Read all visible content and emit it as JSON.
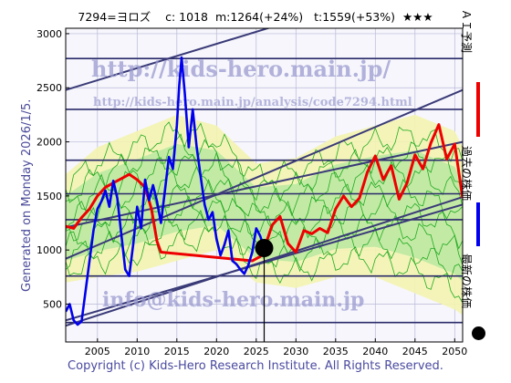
{
  "header": {
    "ticker": "7294=ヨロズ",
    "close": "c: 1018",
    "model": "m:1264(+24%)",
    "target": "t:1559(+53%)",
    "rating": "★★★"
  },
  "generated_note": "Generated on Monday 2026/1/5.",
  "copyright": "Copyright (c) Kids-Hero Research Institute. All Rights Reserved.",
  "watermarks": {
    "top": "http://kids-hero.main.jp/",
    "mid": "http://kids-hero.main.jp/analysis/code7294.html",
    "bottom": "info@kids-hero.main.jp"
  },
  "legend": {
    "ai_forecast": "ＡＩ予測",
    "past_price": "過去の株価",
    "latest_price": "最新の株価"
  },
  "colors": {
    "ai_forecast": "#ee0000",
    "past_price": "#0000ee",
    "band_fill": "#b8e8a0",
    "band_light": "#f4f4b0",
    "band_line": "#22aa22",
    "trend": "#3a3a78",
    "hline": "#2a2a6a",
    "grid": "#b8b8d8"
  },
  "chart_data": {
    "type": "line",
    "xlim": [
      2001,
      2051
    ],
    "ylim": [
      150,
      3050
    ],
    "xticks": [
      2005,
      2010,
      2015,
      2020,
      2025,
      2030,
      2035,
      2040,
      2045,
      2050
    ],
    "yticks": [
      500,
      1000,
      1500,
      2000,
      2500,
      3000
    ],
    "grid": true,
    "latest": {
      "x": 2026.0,
      "y": 1018
    },
    "horizontal_levels": [
      330,
      760,
      1280,
      1520,
      1830,
      2300,
      2770
    ],
    "trend_lines": [
      {
        "x": [
          2001,
          2051
        ],
        "y": [
          300,
          1490
        ]
      },
      {
        "x": [
          2001,
          2051
        ],
        "y": [
          1210,
          2000
        ]
      },
      {
        "x": [
          2001,
          2051
        ],
        "y": [
          2480,
          3600
        ]
      },
      {
        "x": [
          2001,
          2051
        ],
        "y": [
          350,
          1420
        ]
      },
      {
        "x": [
          2001,
          2051
        ],
        "y": [
          920,
          2480
        ]
      }
    ],
    "series": [
      {
        "name": "過去の株価",
        "x": [
          2001.0,
          2001.5,
          2002.0,
          2002.5,
          2003.0,
          2003.5,
          2004.0,
          2004.5,
          2005.0,
          2005.5,
          2006.0,
          2006.5,
          2007.0,
          2007.5,
          2008.0,
          2008.5,
          2009.0,
          2009.5,
          2010.0,
          2010.5,
          2011.0,
          2011.5,
          2012.0,
          2012.5,
          2013.0,
          2013.5,
          2014.0,
          2014.5,
          2015.0,
          2015.3,
          2015.6,
          2016.0,
          2016.5,
          2017.0,
          2017.5,
          2018.0,
          2018.5,
          2019.0,
          2019.5,
          2020.0,
          2020.5,
          2021.0,
          2021.5,
          2022.0,
          2022.5,
          2023.0,
          2023.5,
          2024.0,
          2024.5,
          2025.0,
          2025.5,
          2026.0
        ],
        "y": [
          430,
          500,
          350,
          310,
          340,
          620,
          900,
          1180,
          1380,
          1450,
          1550,
          1400,
          1640,
          1480,
          1150,
          820,
          760,
          1050,
          1400,
          1200,
          1650,
          1460,
          1600,
          1450,
          1250,
          1550,
          1860,
          1750,
          2150,
          2520,
          2780,
          2450,
          1950,
          2300,
          1950,
          1680,
          1420,
          1280,
          1350,
          1100,
          950,
          1050,
          1180,
          900,
          870,
          820,
          780,
          860,
          980,
          1200,
          1130,
          1018
        ]
      },
      {
        "name": "ＡＩ予測",
        "x": [
          2001.0,
          2002.0,
          2003.0,
          2004.0,
          2005.0,
          2006.0,
          2007.0,
          2008.0,
          2009.0,
          2010.0,
          2011.0,
          2011.8,
          2012.5,
          2013.0,
          2024.5,
          2025.5,
          2026.0,
          2027.0,
          2028.0,
          2029.0,
          2030.0,
          2031.0,
          2032.0,
          2033.0,
          2034.0,
          2035.0,
          2036.0,
          2037.0,
          2038.0,
          2039.0,
          2040.0,
          2041.0,
          2042.0,
          2043.0,
          2044.0,
          2045.0,
          2046.0,
          2047.0,
          2048.0,
          2049.0,
          2050.0,
          2051.0
        ],
        "y": [
          1220,
          1200,
          1300,
          1380,
          1500,
          1580,
          1620,
          1660,
          1700,
          1650,
          1580,
          1380,
          1080,
          980,
          900,
          940,
          1010,
          1230,
          1310,
          1060,
          980,
          1180,
          1150,
          1200,
          1160,
          1380,
          1500,
          1400,
          1480,
          1720,
          1870,
          1650,
          1780,
          1470,
          1620,
          1880,
          1750,
          1990,
          2160,
          1840,
          1980,
          1480
        ]
      }
    ],
    "band": {
      "x": [
        2001,
        2005,
        2010,
        2015,
        2020,
        2025,
        2030,
        2035,
        2040,
        2045,
        2050,
        2051
      ],
      "upper": [
        1700,
        1950,
        2100,
        2250,
        2150,
        1800,
        1850,
        2050,
        2150,
        2250,
        2100,
        1950
      ],
      "lower": [
        700,
        750,
        800,
        900,
        1000,
        700,
        650,
        750,
        750,
        600,
        450,
        400
      ]
    }
  }
}
